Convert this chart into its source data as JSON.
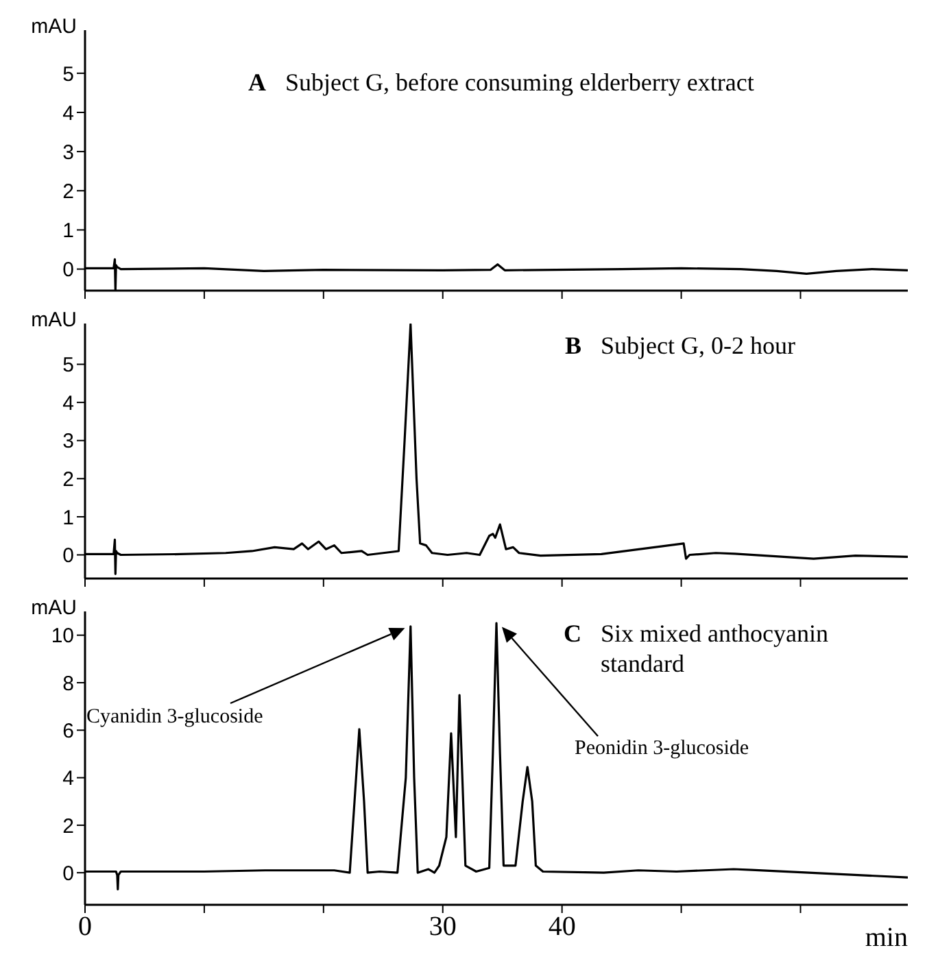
{
  "chart_data": [
    {
      "type": "line",
      "title": "Subject G, before consuming elderberry extract",
      "ylabel": "mAU",
      "annotations": [
        "A"
      ],
      "xlim": [
        0,
        69
      ],
      "xticks": [
        0,
        {
          "value": 10,
          "label": null
        },
        {
          "value": 20,
          "label": null
        },
        30,
        40,
        {
          "value": 50,
          "label": null
        },
        {
          "value": 60,
          "label": null
        }
      ],
      "ylim": [
        -0.55,
        6.1
      ],
      "yticks": [
        0,
        1,
        2,
        3,
        4,
        5
      ],
      "tick_labels": "y",
      "grid": false,
      "legend": false,
      "marker": "none",
      "line_style": "solid",
      "series": [
        {
          "color": "#000000",
          "x": [
            0,
            2.4,
            2.5,
            2.55,
            2.6,
            2.7,
            3,
            10,
            15,
            20,
            30,
            34,
            34.6,
            35.2,
            45,
            50,
            55,
            58,
            60.5,
            63,
            66,
            69
          ],
          "values": [
            0.02,
            0.02,
            0.25,
            -0.55,
            0.1,
            0.05,
            0,
            0.02,
            -0.05,
            -0.02,
            -0.03,
            -0.02,
            0.12,
            -0.03,
            0,
            0.02,
            0,
            -0.05,
            -0.12,
            -0.05,
            0,
            -0.03
          ]
        }
      ]
    },
    {
      "type": "line",
      "title": "Subject G, 0-2 hour",
      "ylabel": "mAU",
      "annotations": [
        "B"
      ],
      "xlim": [
        0,
        69
      ],
      "xticks": [
        0,
        {
          "value": 10,
          "label": null
        },
        {
          "value": 20,
          "label": null
        },
        30,
        40,
        {
          "value": 50,
          "label": null
        },
        {
          "value": 60,
          "label": null
        }
      ],
      "ylim": [
        -0.62,
        6.07
      ],
      "yticks": [
        0,
        1,
        2,
        3,
        4,
        5
      ],
      "tick_labels": "y",
      "grid": false,
      "legend": false,
      "marker": "none",
      "line_style": "solid",
      "series": [
        {
          "color": "#000000",
          "x": [
            0,
            2.4,
            2.5,
            2.55,
            2.6,
            2.7,
            3,
            8,
            11.8,
            14,
            15.9,
            17.5,
            18.2,
            18.7,
            19.6,
            20.2,
            20.9,
            21.5,
            23.2,
            23.7,
            26.3,
            26.8,
            27.3,
            27.8,
            28.1,
            28.6,
            29.1,
            30.4,
            32,
            33.1,
            33.9,
            34.2,
            34.4,
            34.8,
            35.3,
            35.9,
            36.4,
            38.2,
            43.3,
            50.2,
            50.4,
            50.7,
            52.9,
            54.5,
            61.1,
            64.6,
            69
          ],
          "values": [
            0.02,
            0.02,
            0.4,
            -0.5,
            0.1,
            0.05,
            0,
            0.02,
            0.05,
            0.1,
            0.2,
            0.15,
            0.3,
            0.15,
            0.35,
            0.15,
            0.25,
            0.05,
            0.1,
            0,
            0.1,
            3,
            6.05,
            2,
            0.3,
            0.25,
            0.05,
            0,
            0.05,
            0,
            0.5,
            0.55,
            0.45,
            0.8,
            0.15,
            0.2,
            0.05,
            -0.02,
            0.02,
            0.3,
            -0.1,
            0,
            0.05,
            0.03,
            -0.1,
            -0.02,
            -0.05
          ]
        }
      ]
    },
    {
      "type": "line",
      "title": "Six mixed anthocyanin standard",
      "ylabel": "mAU",
      "xlabel": "min",
      "annotations": [
        "C",
        "Cyanidin 3-glucoside",
        "Peonidin 3-glucoside"
      ],
      "xlim": [
        0,
        69
      ],
      "xticks": [
        0,
        {
          "value": 10,
          "label": null
        },
        {
          "value": 20,
          "label": null
        },
        30,
        40,
        {
          "value": 50,
          "label": null
        },
        {
          "value": 60,
          "label": null
        }
      ],
      "ylim": [
        -1.35,
        11
      ],
      "yticks": [
        0,
        2,
        4,
        6,
        8,
        10
      ],
      "grid": false,
      "legend": false,
      "marker": "none",
      "line_style": "solid",
      "series": [
        {
          "color": "#000000",
          "x": [
            0,
            2.6,
            2.7,
            2.75,
            2.8,
            3,
            10,
            15.1,
            20.9,
            22.2,
            22.6,
            23,
            23.4,
            23.7,
            24.7,
            26.2,
            26.9,
            27.3,
            27.6,
            27.9,
            28.8,
            29.3,
            29.7,
            30.3,
            30.7,
            31.1,
            31.4,
            31.9,
            32.8,
            33.9,
            34.2,
            34.5,
            34.8,
            35.1,
            36.1,
            36.7,
            37.1,
            37.5,
            37.8,
            38.4,
            43.5,
            46.4,
            49.6,
            54.4,
            55.9,
            69
          ],
          "values": [
            0.05,
            0.05,
            -0.1,
            -0.7,
            -0.1,
            0.05,
            0.05,
            0.1,
            0.1,
            0,
            3,
            6.04,
            3,
            0,
            0.05,
            0,
            4,
            10.37,
            4,
            0,
            0.15,
            0,
            0.3,
            1.5,
            5.87,
            1.5,
            7.48,
            0.3,
            0.05,
            0.2,
            5,
            10.51,
            5,
            0.3,
            0.3,
            3,
            4.45,
            3,
            0.3,
            0.05,
            0,
            0.1,
            0.05,
            0.15,
            0.12,
            -0.2
          ]
        }
      ]
    }
  ]
}
